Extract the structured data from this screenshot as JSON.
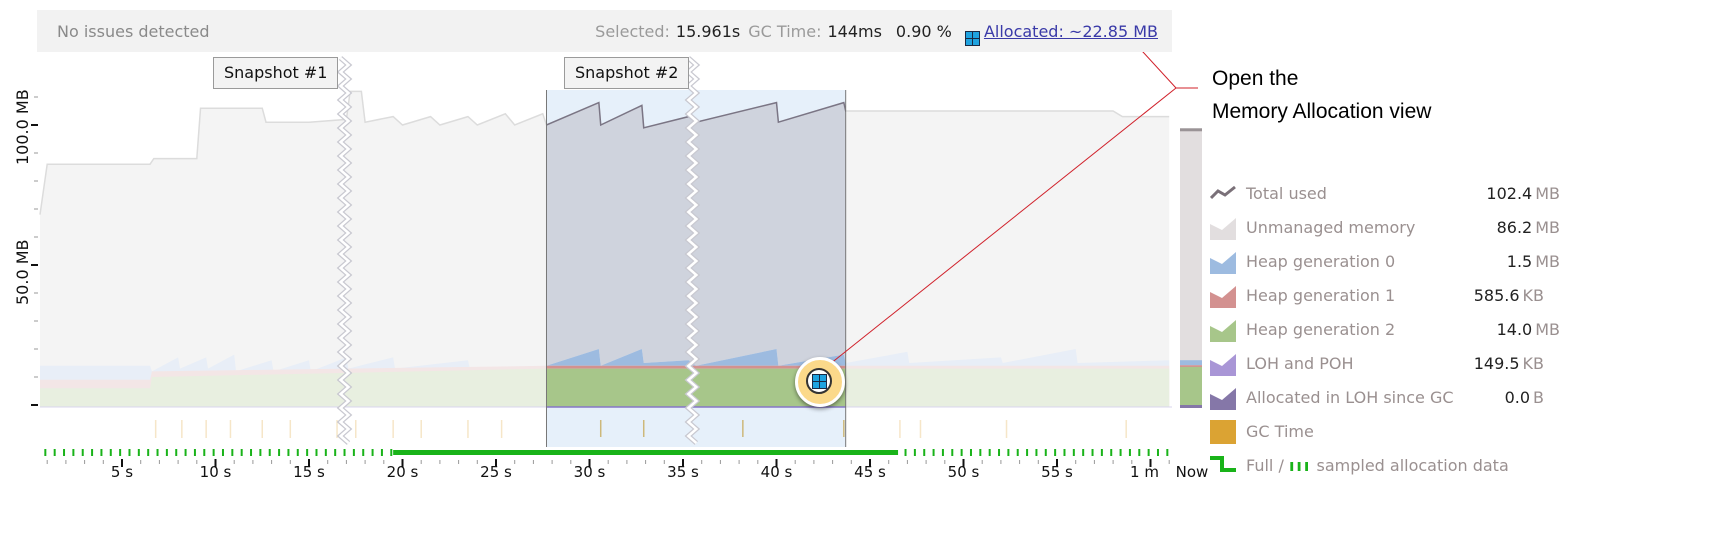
{
  "top_bar": {
    "status": "No issues detected",
    "selected_label": "Selected:",
    "selected_value": "15.961s",
    "gc_time_label": "GC Time:",
    "gc_time_value": "144ms",
    "gc_percent": "0.90 %",
    "allocated_link": "Allocated: ~22.85 MB"
  },
  "snapshots": [
    {
      "label": "Snapshot #1",
      "time_s": 16.9
    },
    {
      "label": "Snapshot #2",
      "time_s": 35.5
    }
  ],
  "callout": {
    "line1": "Open the",
    "line2": "Memory Allocation view"
  },
  "legend": [
    {
      "label": "Total used",
      "value": "102.4",
      "unit": "MB",
      "color": "#7a7078",
      "icon": "line-icon"
    },
    {
      "label": "Unmanaged memory",
      "value": "86.2",
      "unit": "MB",
      "color": "#e2dedf",
      "icon": "area-icon"
    },
    {
      "label": "Heap generation 0",
      "value": "1.5",
      "unit": "MB",
      "color": "#9dbbe0",
      "icon": "area-icon"
    },
    {
      "label": "Heap generation 1",
      "value": "585.6",
      "unit": "KB",
      "color": "#d39190",
      "icon": "area-icon"
    },
    {
      "label": "Heap generation 2",
      "value": "14.0",
      "unit": "MB",
      "color": "#a7c68a",
      "icon": "area-icon"
    },
    {
      "label": "LOH and POH",
      "value": "149.5",
      "unit": "KB",
      "color": "#a996d6",
      "icon": "area-icon"
    },
    {
      "label": "Allocated in LOH since GC",
      "value": "0.0",
      "unit": "B",
      "color": "#8577a8",
      "icon": "area-icon"
    },
    {
      "label": "GC Time",
      "color": "#dba333",
      "icon": "square-icon"
    },
    {
      "label_full": "Full /",
      "label_sampled": "sampled allocation data",
      "color": "#19b319",
      "icon": "step-icon"
    }
  ],
  "chart_data": {
    "type": "area",
    "ylabel_ticks": [
      "50.0 MB",
      "100.0 MB"
    ],
    "y_ticks_mb": [
      50,
      100
    ],
    "ylim": [
      0,
      112
    ],
    "xlim": [
      0,
      61.5
    ],
    "x_tick_labels": [
      "5 s",
      "10 s",
      "15 s",
      "20 s",
      "25 s",
      "30 s",
      "35 s",
      "40 s",
      "45 s",
      "50 s",
      "55 s",
      "1 m"
    ],
    "x_ticks_s": [
      5,
      10,
      15,
      20,
      25,
      30,
      35,
      40,
      45,
      50,
      55,
      60
    ],
    "now_label": "Now",
    "selection_s": [
      27.7,
      43.7
    ],
    "full_data_range_s": [
      19.5,
      46.5
    ],
    "total_used": [
      [
        0.6,
        68
      ],
      [
        1,
        86
      ],
      [
        6.5,
        86
      ],
      [
        6.7,
        88
      ],
      [
        9,
        88
      ],
      [
        9.2,
        106
      ],
      [
        12.5,
        106
      ],
      [
        12.7,
        101
      ],
      [
        15,
        101
      ],
      [
        17,
        102
      ],
      [
        17.2,
        112
      ],
      [
        17.8,
        112
      ],
      [
        18,
        101
      ],
      [
        19.5,
        103
      ],
      [
        20,
        100
      ],
      [
        21.5,
        103
      ],
      [
        22,
        100
      ],
      [
        23.5,
        103
      ],
      [
        24,
        100
      ],
      [
        25.5,
        104
      ],
      [
        26,
        100
      ],
      [
        27.5,
        104
      ],
      [
        27.7,
        100
      ],
      [
        30.5,
        108
      ],
      [
        30.6,
        100
      ],
      [
        32.8,
        107
      ],
      [
        32.9,
        99
      ],
      [
        35.3,
        103
      ],
      [
        35.7,
        101
      ],
      [
        40,
        108
      ],
      [
        40.1,
        101
      ],
      [
        43.6,
        108
      ],
      [
        43.7,
        105
      ],
      [
        58,
        105
      ],
      [
        58.5,
        103
      ],
      [
        61,
        103
      ]
    ],
    "gen2": [
      [
        0,
        6
      ],
      [
        6.5,
        6
      ],
      [
        6.6,
        10
      ],
      [
        27.7,
        13
      ],
      [
        61,
        13
      ]
    ],
    "gen1": [
      [
        0,
        9
      ],
      [
        6.5,
        9
      ],
      [
        6.6,
        12
      ],
      [
        27.7,
        14
      ],
      [
        61,
        14
      ]
    ],
    "gen0": [
      [
        0,
        14
      ],
      [
        6.5,
        14
      ],
      [
        6.6,
        12
      ],
      [
        8,
        17
      ],
      [
        8.1,
        13
      ],
      [
        9.5,
        17
      ],
      [
        9.6,
        13
      ],
      [
        11,
        18
      ],
      [
        11.1,
        12
      ],
      [
        13,
        16
      ],
      [
        13.1,
        12
      ],
      [
        15,
        16
      ],
      [
        15.1,
        12
      ],
      [
        17,
        17
      ],
      [
        17.1,
        13
      ],
      [
        19.5,
        17
      ],
      [
        19.6,
        13
      ],
      [
        23.5,
        16
      ],
      [
        23.6,
        13
      ],
      [
        27.7,
        14
      ],
      [
        30.5,
        20
      ],
      [
        30.6,
        14
      ],
      [
        32.8,
        20
      ],
      [
        32.9,
        15
      ],
      [
        35.3,
        16
      ],
      [
        35.7,
        14
      ],
      [
        40,
        20
      ],
      [
        40.1,
        14
      ],
      [
        43.6,
        18
      ],
      [
        43.7,
        15
      ],
      [
        47,
        19
      ],
      [
        47.1,
        15
      ],
      [
        52,
        17
      ],
      [
        52.1,
        15
      ],
      [
        56,
        20
      ],
      [
        56.1,
        15
      ],
      [
        61,
        16
      ]
    ],
    "gc_events_s": [
      6.8,
      8.2,
      9.5,
      10.8,
      12.5,
      14,
      16.5,
      17.5,
      19.5,
      21,
      23.5,
      25.3,
      30.6,
      32.9,
      38.2,
      43.6,
      46.6,
      47.7,
      52.3,
      58.7
    ]
  },
  "current_gauge": {
    "total_used_mb": 102.4,
    "gen2_mb": 14.0,
    "gen1_kb": 585.6,
    "gen0_mb": 1.5
  }
}
